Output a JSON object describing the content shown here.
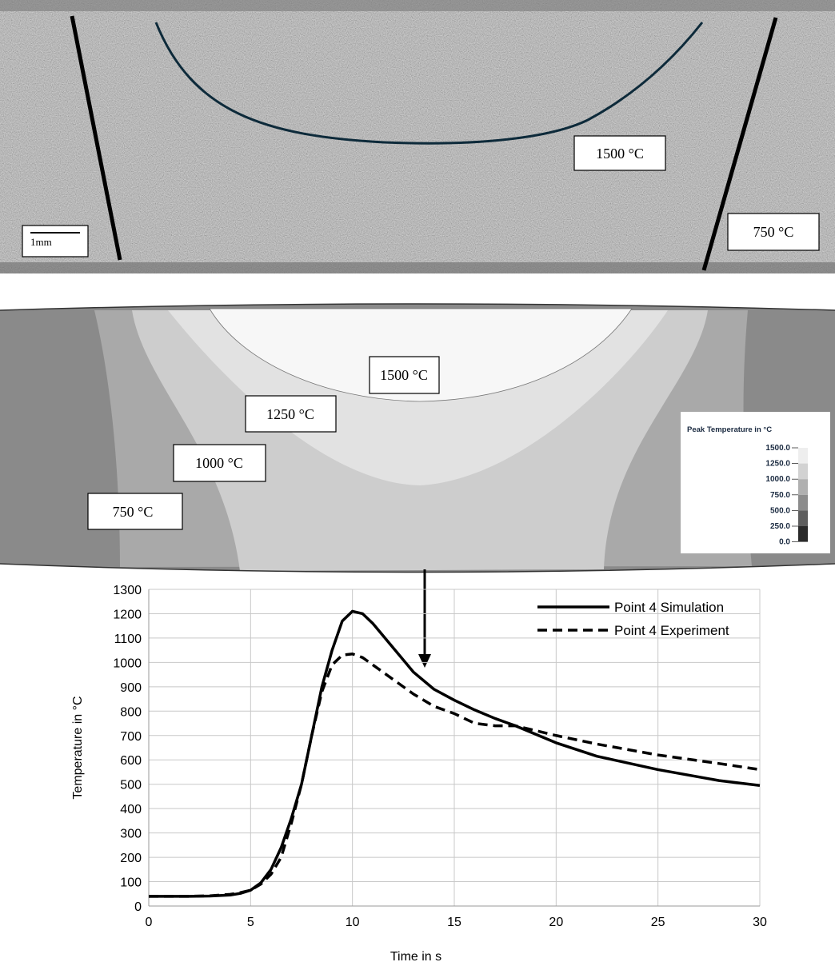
{
  "micrograph": {
    "scale_bar": "1mm",
    "labels": [
      "1500 °C",
      "750 °C"
    ]
  },
  "simulation": {
    "labels": [
      "1500 °C",
      "1250 °C",
      "1000 °C",
      "750 °C"
    ],
    "colorbar": {
      "title": "Peak Temperature in °C",
      "levels": [
        {
          "value": 1500,
          "label": "1500.0"
        },
        {
          "value": 1250,
          "label": "1250.0"
        },
        {
          "value": 1000,
          "label": "1000.0"
        },
        {
          "value": 750,
          "label": "750.0"
        },
        {
          "value": 500,
          "label": "500.0"
        },
        {
          "value": 250,
          "label": "250.0"
        },
        {
          "value": 0,
          "label": "0.0"
        }
      ],
      "colors": [
        "#eeeeee",
        "#d2d2d2",
        "#b0b0b0",
        "#8c8c8c",
        "#5e5e5e",
        "#2a2a2a"
      ]
    }
  },
  "chart_data": {
    "type": "line",
    "xlabel": "Time in s",
    "ylabel": "Temperature in °C",
    "x": [
      0,
      1,
      2,
      3,
      4,
      4.5,
      5,
      5.5,
      6,
      6.5,
      7,
      7.5,
      8,
      8.5,
      9,
      9.5,
      10,
      10.5,
      11,
      12,
      13,
      14,
      15,
      16,
      17,
      18,
      20,
      22,
      25,
      28,
      30
    ],
    "series": [
      {
        "name": "Point 4 Simulation",
        "color": "#000000",
        "line_style": "solid",
        "values": [
          40,
          40,
          40,
          41,
          45,
          52,
          65,
          95,
          150,
          240,
          360,
          500,
          700,
          900,
          1050,
          1170,
          1210,
          1200,
          1160,
          1060,
          960,
          890,
          845,
          805,
          770,
          740,
          670,
          615,
          560,
          515,
          495
        ]
      },
      {
        "name": "Point 4 Experiment",
        "color": "#000000",
        "line_style": "dashed",
        "values": [
          40,
          40,
          40,
          42,
          48,
          55,
          65,
          90,
          130,
          200,
          340,
          500,
          700,
          880,
          990,
          1030,
          1035,
          1020,
          990,
          930,
          870,
          820,
          790,
          750,
          740,
          740,
          700,
          665,
          620,
          585,
          560
        ]
      }
    ],
    "xlim": [
      0,
      30
    ],
    "xticks": [
      0,
      5,
      10,
      15,
      20,
      25,
      30
    ],
    "ylim": [
      0,
      1300
    ],
    "yticks": [
      0,
      100,
      200,
      300,
      400,
      500,
      600,
      700,
      800,
      900,
      1000,
      1100,
      1200,
      1300
    ],
    "grid": true,
    "legend": "upper right"
  }
}
